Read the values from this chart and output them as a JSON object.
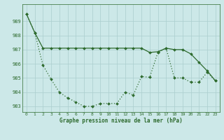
{
  "line1": [
    989.5,
    988.2,
    987.1,
    987.1,
    987.1,
    987.1,
    987.1,
    987.1,
    987.1,
    987.1,
    987.1,
    987.1,
    987.1,
    987.1,
    987.1,
    986.8,
    986.85,
    987.1,
    987.0,
    987.0,
    986.7,
    986.1,
    985.5,
    984.8
  ],
  "line2": [
    989.5,
    988.2,
    985.9,
    984.9,
    984.0,
    983.6,
    983.3,
    983.0,
    983.0,
    983.2,
    983.2,
    983.2,
    984.0,
    983.8,
    985.1,
    985.05,
    986.8,
    987.1,
    985.0,
    985.0,
    984.7,
    984.7,
    985.4,
    984.8
  ],
  "xlim_min": -0.5,
  "xlim_max": 23.5,
  "ylim_min": 982.6,
  "ylim_max": 990.2,
  "yticks": [
    983,
    984,
    985,
    986,
    987,
    988,
    989
  ],
  "xticks": [
    0,
    1,
    2,
    3,
    4,
    5,
    6,
    7,
    8,
    9,
    10,
    11,
    12,
    13,
    14,
    15,
    16,
    17,
    18,
    19,
    20,
    21,
    22,
    23
  ],
  "xlabel": "Graphe pression niveau de la mer (hPa)",
  "line_color": "#2d6a2d",
  "bg_color": "#cce8e8",
  "grid_color": "#aacece",
  "markersize": 2.0,
  "linewidth": 0.9,
  "tick_fontsize": 4.5,
  "xlabel_fontsize": 5.5
}
